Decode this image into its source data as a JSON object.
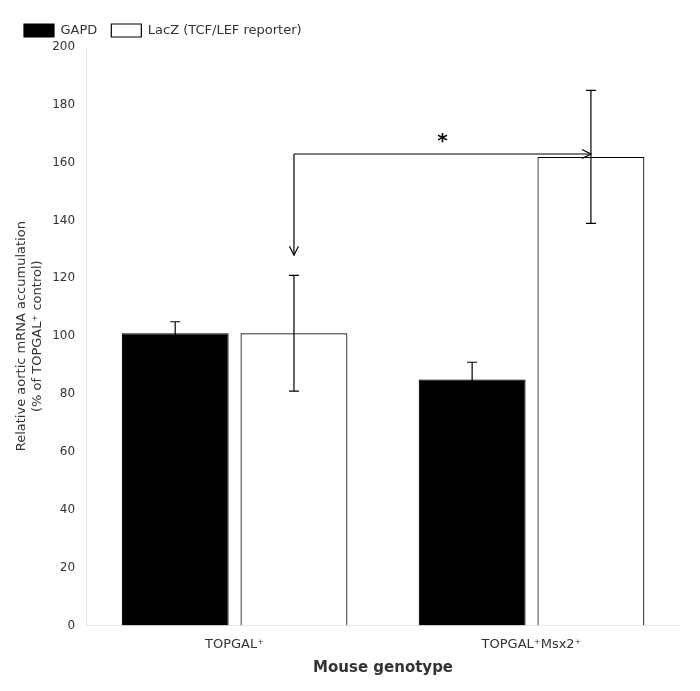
{
  "chart_data": {
    "type": "bar",
    "categories": [
      "TOPGAL⁺",
      "TOPGAL⁺Msx2⁺"
    ],
    "series": [
      {
        "name": "GAPD",
        "color": "#000000",
        "values": [
          101,
          85
        ],
        "errors": [
          4,
          6
        ]
      },
      {
        "name": "LacZ (TCF/LEF reporter)",
        "color": "#ffffff",
        "values": [
          101,
          162
        ],
        "errors": [
          20,
          23
        ]
      }
    ],
    "ylabel": "Relative aortic mRNA accumulation\n(% of TOPGAL⁺ control)",
    "xlabel": "Mouse genotype",
    "ylim": [
      0,
      200
    ],
    "yticks": [
      0,
      20,
      40,
      60,
      80,
      100,
      120,
      140,
      160,
      180,
      200
    ],
    "grid": false,
    "legend": "upper left",
    "annotations": [
      {
        "text": "*",
        "series": "LacZ (TCF/LEF reporter)",
        "from": "TOPGAL⁺",
        "to": "TOPGAL⁺Msx2⁺",
        "y": 163,
        "arrow_tip_y": 128
      }
    ]
  }
}
